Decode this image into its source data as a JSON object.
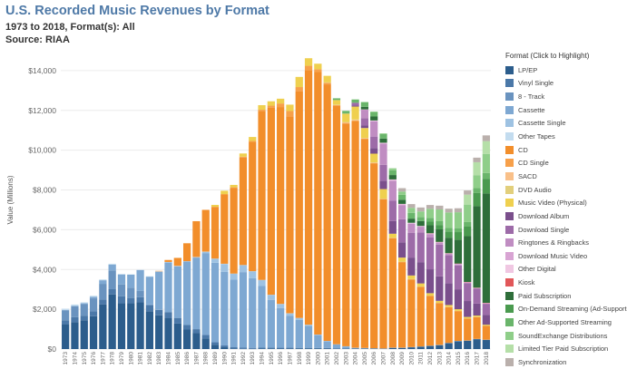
{
  "header": {
    "title": "U.S. Recorded Music Revenues by Format",
    "subtitle": "1973 to 2018, Format(s): All",
    "source": "Source: RIAA"
  },
  "legend": {
    "title": "Format (Click to Highlight)"
  },
  "chart_data": {
    "type": "bar",
    "stacked": true,
    "title": "U.S. Recorded Music Revenues by Format",
    "xlabel": "",
    "ylabel": "Value (Millions)",
    "ylim": [
      0,
      15000
    ],
    "yticks": [
      0,
      2000,
      4000,
      6000,
      8000,
      10000,
      12000,
      14000
    ],
    "ytick_labels": [
      "$0",
      "$2,000",
      "$4,000",
      "$6,000",
      "$8,000",
      "$10,000",
      "$12,000",
      "$14,000"
    ],
    "legend_position": "right",
    "categories": [
      "1973",
      "1974",
      "1975",
      "1976",
      "1977",
      "1978",
      "1979",
      "1980",
      "1981",
      "1982",
      "1983",
      "1984",
      "1985",
      "1986",
      "1987",
      "1988",
      "1989",
      "1990",
      "1991",
      "1992",
      "1993",
      "1994",
      "1995",
      "1996",
      "1997",
      "1998",
      "1999",
      "2000",
      "2001",
      "2002",
      "2003",
      "2004",
      "2005",
      "2006",
      "2007",
      "2008",
      "2009",
      "2010",
      "2011",
      "2012",
      "2013",
      "2014",
      "2015",
      "2016",
      "2017",
      "2018"
    ],
    "series": [
      {
        "name": "LP/EP",
        "color": "#2c5d8c",
        "values": [
          1250,
          1350,
          1450,
          1650,
          2250,
          2750,
          2300,
          2300,
          2350,
          1900,
          1700,
          1550,
          1280,
          980,
          800,
          530,
          220,
          90,
          30,
          10,
          10,
          20,
          30,
          20,
          30,
          30,
          30,
          30,
          30,
          20,
          20,
          20,
          20,
          20,
          20,
          60,
          60,
          90,
          120,
          160,
          200,
          300,
          400,
          420,
          500,
          460
        ]
      },
      {
        "name": "Vinyl Single",
        "color": "#4b78a8",
        "values": [
          200,
          250,
          230,
          240,
          240,
          260,
          350,
          270,
          260,
          290,
          270,
          300,
          280,
          230,
          200,
          180,
          120,
          90,
          60,
          60,
          50,
          50,
          45,
          45,
          35,
          30,
          30,
          25,
          20,
          15,
          15,
          15,
          15,
          10,
          5,
          5,
          5,
          5,
          5,
          5,
          5,
          5,
          5,
          5,
          5,
          5
        ]
      },
      {
        "name": "8 - Track",
        "color": "#6a93bf",
        "values": [
          500,
          550,
          580,
          660,
          790,
          940,
          600,
          520,
          310,
          50,
          20,
          10,
          5,
          0,
          0,
          0,
          0,
          0,
          0,
          0,
          0,
          0,
          0,
          0,
          0,
          0,
          0,
          0,
          0,
          0,
          0,
          0,
          0,
          0,
          0,
          0,
          0,
          0,
          0,
          0,
          0,
          0,
          0,
          0,
          0,
          0
        ]
      },
      {
        "name": "Cassette",
        "color": "#7ea8d2",
        "values": [
          20,
          30,
          40,
          80,
          180,
          300,
          500,
          650,
          1050,
          1400,
          1900,
          2500,
          2600,
          3200,
          3600,
          4100,
          4000,
          3700,
          3400,
          3800,
          3500,
          3100,
          2400,
          2000,
          1600,
          1400,
          1100,
          650,
          350,
          200,
          100,
          25,
          15,
          5,
          0,
          0,
          0,
          0,
          0,
          0,
          0,
          0,
          0,
          0,
          0,
          0
        ]
      },
      {
        "name": "Cassette Single",
        "color": "#9ec2e2",
        "values": [
          0,
          0,
          0,
          0,
          0,
          0,
          0,
          0,
          0,
          0,
          0,
          0,
          0,
          0,
          20,
          80,
          200,
          400,
          300,
          350,
          350,
          300,
          250,
          200,
          130,
          100,
          60,
          20,
          5,
          0,
          0,
          0,
          0,
          0,
          0,
          0,
          0,
          0,
          0,
          0,
          0,
          0,
          0,
          0,
          0,
          0
        ]
      },
      {
        "name": "Other Tapes",
        "color": "#c3dcef",
        "values": [
          60,
          60,
          50,
          50,
          40,
          40,
          30,
          20,
          20,
          20,
          20,
          20,
          20,
          10,
          10,
          10,
          10,
          10,
          5,
          5,
          5,
          5,
          5,
          5,
          5,
          5,
          5,
          5,
          5,
          5,
          5,
          5,
          5,
          5,
          5,
          5,
          5,
          5,
          5,
          5,
          5,
          5,
          5,
          5,
          5,
          5
        ]
      },
      {
        "name": "CD",
        "color": "#f28e2b",
        "values": [
          0,
          0,
          0,
          0,
          0,
          0,
          0,
          0,
          0,
          0,
          20,
          100,
          400,
          900,
          1800,
          2100,
          2600,
          3500,
          4300,
          5400,
          6500,
          8500,
          9400,
          9900,
          9900,
          11400,
          12800,
          13200,
          12900,
          12000,
          11200,
          11400,
          10500,
          9300,
          7500,
          5500,
          4300,
          3400,
          3000,
          2500,
          2100,
          1800,
          1500,
          1100,
          1100,
          700
        ]
      },
      {
        "name": "CD Single",
        "color": "#f7a04a",
        "values": [
          0,
          0,
          0,
          0,
          0,
          0,
          0,
          0,
          0,
          0,
          0,
          0,
          0,
          0,
          0,
          0,
          0,
          0,
          40,
          50,
          50,
          60,
          110,
          180,
          270,
          210,
          220,
          140,
          80,
          20,
          30,
          20,
          20,
          20,
          20,
          20,
          20,
          10,
          10,
          10,
          5,
          5,
          5,
          5,
          5,
          5
        ]
      },
      {
        "name": "SACD",
        "color": "#f9c089",
        "values": [
          0,
          0,
          0,
          0,
          0,
          0,
          0,
          0,
          0,
          0,
          0,
          0,
          0,
          0,
          0,
          0,
          0,
          0,
          0,
          0,
          0,
          0,
          0,
          0,
          0,
          0,
          0,
          0,
          0,
          10,
          30,
          40,
          30,
          20,
          10,
          5,
          5,
          5,
          5,
          5,
          5,
          5,
          5,
          5,
          5,
          5
        ]
      },
      {
        "name": "DVD Audio",
        "color": "#e2cf7c",
        "values": [
          0,
          0,
          0,
          0,
          0,
          0,
          0,
          0,
          0,
          0,
          0,
          0,
          0,
          0,
          0,
          0,
          0,
          0,
          0,
          0,
          0,
          0,
          0,
          0,
          0,
          0,
          0,
          0,
          20,
          20,
          20,
          20,
          10,
          5,
          5,
          5,
          5,
          5,
          5,
          5,
          5,
          5,
          5,
          5,
          5,
          5
        ]
      },
      {
        "name": "Music Video (Physical)",
        "color": "#efd04f",
        "values": [
          0,
          0,
          0,
          0,
          0,
          0,
          0,
          0,
          0,
          0,
          0,
          0,
          0,
          0,
          0,
          0,
          100,
          170,
          120,
          160,
          200,
          230,
          220,
          240,
          320,
          510,
          380,
          280,
          330,
          230,
          420,
          650,
          500,
          440,
          480,
          200,
          200,
          180,
          150,
          120,
          100,
          90,
          80,
          70,
          60,
          40
        ]
      },
      {
        "name": "Download Album",
        "color": "#7a4f8c",
        "values": [
          0,
          0,
          0,
          0,
          0,
          0,
          0,
          0,
          0,
          0,
          0,
          0,
          0,
          0,
          0,
          0,
          0,
          0,
          0,
          0,
          0,
          0,
          0,
          0,
          0,
          0,
          0,
          0,
          0,
          0,
          0,
          50,
          140,
          280,
          420,
          640,
          770,
          900,
          1070,
          1200,
          1230,
          1100,
          1000,
          800,
          600,
          500
        ]
      },
      {
        "name": "Download Single",
        "color": "#9d6ba8",
        "values": [
          0,
          0,
          0,
          0,
          0,
          0,
          0,
          0,
          0,
          0,
          0,
          0,
          0,
          0,
          0,
          0,
          0,
          0,
          0,
          0,
          0,
          0,
          0,
          0,
          0,
          0,
          0,
          0,
          0,
          0,
          0,
          140,
          360,
          580,
          800,
          1030,
          1160,
          1250,
          1500,
          1600,
          1600,
          1400,
          1200,
          900,
          750,
          550
        ]
      },
      {
        "name": "Ringtones & Ringbacks",
        "color": "#c08dc2",
        "values": [
          0,
          0,
          0,
          0,
          0,
          0,
          0,
          0,
          0,
          0,
          0,
          0,
          0,
          0,
          0,
          0,
          0,
          0,
          0,
          0,
          0,
          0,
          0,
          0,
          0,
          0,
          0,
          0,
          0,
          0,
          0,
          0,
          420,
          770,
          1050,
          980,
          700,
          450,
          280,
          170,
          100,
          70,
          60,
          30,
          20,
          20
        ]
      },
      {
        "name": "Download Music Video",
        "color": "#d8a4d3",
        "values": [
          0,
          0,
          0,
          0,
          0,
          0,
          0,
          0,
          0,
          0,
          0,
          0,
          0,
          0,
          0,
          0,
          0,
          0,
          0,
          0,
          0,
          0,
          0,
          0,
          0,
          0,
          0,
          0,
          0,
          0,
          0,
          0,
          5,
          20,
          40,
          50,
          40,
          30,
          20,
          20,
          10,
          10,
          10,
          5,
          5,
          5
        ]
      },
      {
        "name": "Other Digital",
        "color": "#f0c7e2",
        "values": [
          0,
          0,
          0,
          0,
          0,
          0,
          0,
          0,
          0,
          0,
          0,
          0,
          0,
          0,
          0,
          0,
          0,
          0,
          0,
          0,
          0,
          0,
          0,
          0,
          0,
          0,
          0,
          0,
          0,
          0,
          0,
          0,
          10,
          20,
          20,
          30,
          30,
          20,
          20,
          20,
          20,
          20,
          20,
          20,
          20,
          20
        ]
      },
      {
        "name": "Kiosk",
        "color": "#e15759",
        "values": [
          0,
          0,
          0,
          0,
          0,
          0,
          0,
          0,
          0,
          0,
          0,
          0,
          0,
          0,
          0,
          0,
          0,
          0,
          0,
          0,
          0,
          0,
          0,
          0,
          0,
          0,
          0,
          0,
          0,
          0,
          0,
          0,
          0,
          0,
          0,
          0,
          0,
          0,
          0,
          5,
          5,
          5,
          5,
          5,
          5,
          5
        ]
      },
      {
        "name": "Paid Subscription",
        "color": "#2e6e3a",
        "values": [
          0,
          0,
          0,
          0,
          0,
          0,
          0,
          0,
          0,
          0,
          0,
          0,
          0,
          0,
          0,
          0,
          0,
          0,
          0,
          0,
          0,
          0,
          0,
          0,
          0,
          0,
          0,
          0,
          0,
          0,
          0,
          0,
          130,
          200,
          210,
          220,
          210,
          210,
          250,
          400,
          630,
          780,
          1200,
          2300,
          4100,
          5500
        ]
      },
      {
        "name": "On-Demand Streaming (Ad-Supported)",
        "color": "#4a9a4f",
        "values": [
          0,
          0,
          0,
          0,
          0,
          0,
          0,
          0,
          0,
          0,
          0,
          0,
          0,
          0,
          0,
          0,
          0,
          0,
          0,
          0,
          0,
          0,
          0,
          0,
          0,
          0,
          0,
          0,
          0,
          0,
          0,
          0,
          0,
          0,
          0,
          0,
          0,
          0,
          0,
          180,
          220,
          300,
          380,
          480,
          660,
          740
        ]
      },
      {
        "name": "Other Ad-Supported Streaming",
        "color": "#6ab56b",
        "values": [
          0,
          0,
          0,
          0,
          0,
          0,
          0,
          0,
          0,
          0,
          0,
          0,
          0,
          0,
          0,
          0,
          0,
          0,
          0,
          0,
          0,
          0,
          0,
          0,
          0,
          0,
          0,
          0,
          0,
          90,
          130,
          160,
          230,
          220,
          220,
          240,
          250,
          290,
          190,
          190,
          190,
          200,
          200,
          230,
          250,
          290
        ]
      },
      {
        "name": "SoundExchange Distributions",
        "color": "#8fce89",
        "values": [
          0,
          0,
          0,
          0,
          0,
          0,
          0,
          0,
          0,
          0,
          0,
          0,
          0,
          0,
          0,
          0,
          0,
          0,
          0,
          0,
          0,
          0,
          0,
          0,
          0,
          0,
          0,
          0,
          0,
          0,
          10,
          10,
          20,
          30,
          40,
          100,
          160,
          250,
          290,
          460,
          590,
          770,
          800,
          880,
          650,
          950
        ]
      },
      {
        "name": "Limited Tier Paid Subscription",
        "color": "#b5dfa8",
        "values": [
          0,
          0,
          0,
          0,
          0,
          0,
          0,
          0,
          0,
          0,
          0,
          0,
          0,
          0,
          0,
          0,
          0,
          0,
          0,
          0,
          0,
          0,
          0,
          0,
          0,
          0,
          0,
          0,
          0,
          0,
          0,
          0,
          0,
          0,
          0,
          0,
          0,
          0,
          0,
          0,
          0,
          0,
          0,
          500,
          650,
          650
        ]
      },
      {
        "name": "Synchronization",
        "color": "#bab0ac",
        "values": [
          0,
          0,
          0,
          0,
          0,
          0,
          0,
          0,
          0,
          0,
          0,
          0,
          0,
          0,
          0,
          0,
          0,
          0,
          0,
          0,
          0,
          0,
          0,
          0,
          0,
          0,
          0,
          0,
          0,
          0,
          0,
          0,
          0,
          0,
          0,
          0,
          170,
          190,
          200,
          190,
          190,
          190,
          200,
          210,
          230,
          290
        ]
      }
    ]
  }
}
